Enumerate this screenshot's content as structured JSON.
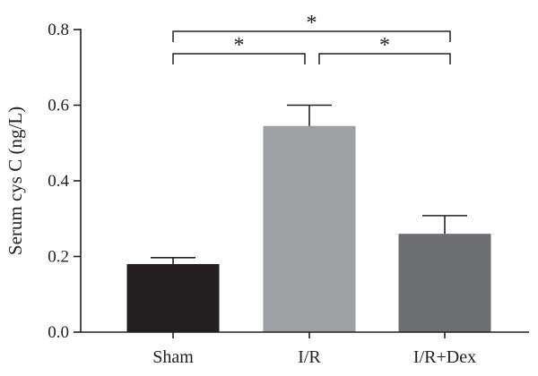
{
  "chart_data": {
    "type": "bar",
    "title": "",
    "xlabel": "",
    "ylabel": "Serum cys C (ng/L)",
    "ylim": [
      0,
      0.8
    ],
    "yticks": [
      0.0,
      0.2,
      0.4,
      0.6,
      0.8
    ],
    "ytick_labels": [
      "0.0",
      "0.2",
      "0.4",
      "0.6",
      "0.8"
    ],
    "grid": false,
    "categories": [
      "Sham",
      "I/R",
      "I/R+Dex"
    ],
    "values": [
      0.18,
      0.545,
      0.26
    ],
    "errors": [
      0.017,
      0.055,
      0.048
    ],
    "bar_colors": [
      "#231f20",
      "#9d9fa2",
      "#6d6e71"
    ],
    "significance": [
      {
        "from": 0,
        "to": 2,
        "label": "*"
      },
      {
        "from": 0,
        "to": 1,
        "label": "*"
      },
      {
        "from": 1,
        "to": 2,
        "label": "*"
      }
    ]
  }
}
